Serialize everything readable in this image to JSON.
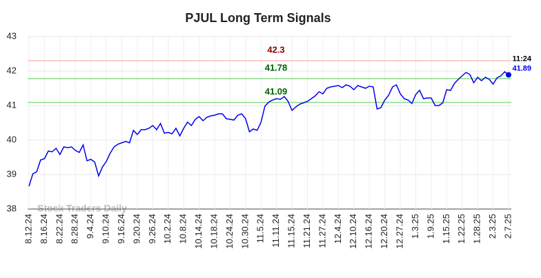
{
  "chart_data": {
    "type": "line",
    "title": "PJUL Long Term Signals",
    "categories": [
      "8.12.24",
      null,
      null,
      null,
      "8.16.24",
      null,
      null,
      null,
      "8.22.24",
      null,
      null,
      null,
      "8.28.24",
      null,
      null,
      null,
      "9.4.24",
      null,
      null,
      null,
      "9.10.24",
      null,
      null,
      null,
      "9.16.24",
      null,
      null,
      null,
      "9.20.24",
      null,
      null,
      null,
      "9.26.24",
      null,
      null,
      null,
      "10.2.24",
      null,
      null,
      null,
      "10.8.24",
      null,
      null,
      null,
      "10.14.24",
      null,
      null,
      null,
      "10.18.24",
      null,
      null,
      null,
      "10.24.24",
      null,
      null,
      null,
      "10.30.24",
      null,
      null,
      null,
      "11.5.24",
      null,
      null,
      null,
      "11.11.24",
      null,
      null,
      null,
      "11.15.24",
      null,
      null,
      null,
      "11.21.24",
      null,
      null,
      null,
      "11.27.24",
      null,
      null,
      null,
      "12.4.24",
      null,
      null,
      null,
      "12.10.24",
      null,
      null,
      null,
      "12.16.24",
      null,
      null,
      null,
      "12.20.24",
      null,
      null,
      null,
      "12.27.24",
      null,
      null,
      null,
      "1.3.25",
      null,
      null,
      null,
      "1.9.25",
      null,
      null,
      null,
      "1.15.25",
      null,
      null,
      null,
      "1.22.25",
      null,
      null,
      null,
      "1.28.25",
      null,
      null,
      null,
      "2.3.25",
      null,
      null,
      null,
      "2.7.25"
    ],
    "series": [
      {
        "color": "#0000ee",
        "values": [
          38.66,
          39.02,
          39.08,
          39.42,
          39.46,
          39.68,
          39.66,
          39.76,
          39.58,
          39.8,
          39.78,
          39.8,
          39.7,
          39.64,
          39.86,
          39.4,
          39.44,
          39.36,
          38.96,
          39.22,
          39.38,
          39.62,
          39.8,
          39.88,
          39.92,
          39.96,
          39.92,
          40.28,
          40.16,
          40.3,
          40.3,
          40.34,
          40.42,
          40.3,
          40.48,
          40.2,
          40.22,
          40.18,
          40.34,
          40.12,
          40.34,
          40.52,
          40.42,
          40.6,
          40.68,
          40.56,
          40.66,
          40.7,
          40.72,
          40.76,
          40.76,
          40.62,
          40.6,
          40.58,
          40.72,
          40.76,
          40.62,
          40.24,
          40.32,
          40.28,
          40.52,
          40.98,
          41.1,
          41.16,
          41.2,
          41.18,
          41.26,
          41.12,
          40.86,
          40.96,
          41.04,
          41.08,
          41.12,
          41.2,
          41.28,
          41.4,
          41.34,
          41.5,
          41.54,
          41.56,
          41.58,
          41.52,
          41.6,
          41.56,
          41.46,
          41.58,
          41.54,
          41.5,
          41.56,
          41.54,
          40.9,
          40.94,
          41.16,
          41.3,
          41.54,
          41.6,
          41.34,
          41.2,
          41.16,
          41.06,
          41.32,
          41.44,
          41.2,
          41.22,
          41.22,
          41.0,
          41.0,
          41.08,
          41.46,
          41.44,
          41.64,
          41.76,
          41.86,
          41.96,
          41.9,
          41.66,
          41.82,
          41.72,
          41.82,
          41.76,
          41.62,
          41.8,
          41.86,
          41.98,
          41.89
        ]
      }
    ],
    "ylim": [
      38,
      43
    ],
    "yticks": [
      38,
      39,
      40,
      41,
      42,
      43
    ],
    "grid": true,
    "hlines": [
      {
        "value": 42.3,
        "color": "#ffbbbb",
        "label_color": "#8b0000"
      },
      {
        "value": 41.78,
        "color": "#88dd88",
        "label_color": "#006400"
      },
      {
        "value": 41.09,
        "color": "#88dd88",
        "label_color": "#006400"
      }
    ],
    "last_time": "11:24",
    "watermark": "Stock Traders Daily"
  }
}
